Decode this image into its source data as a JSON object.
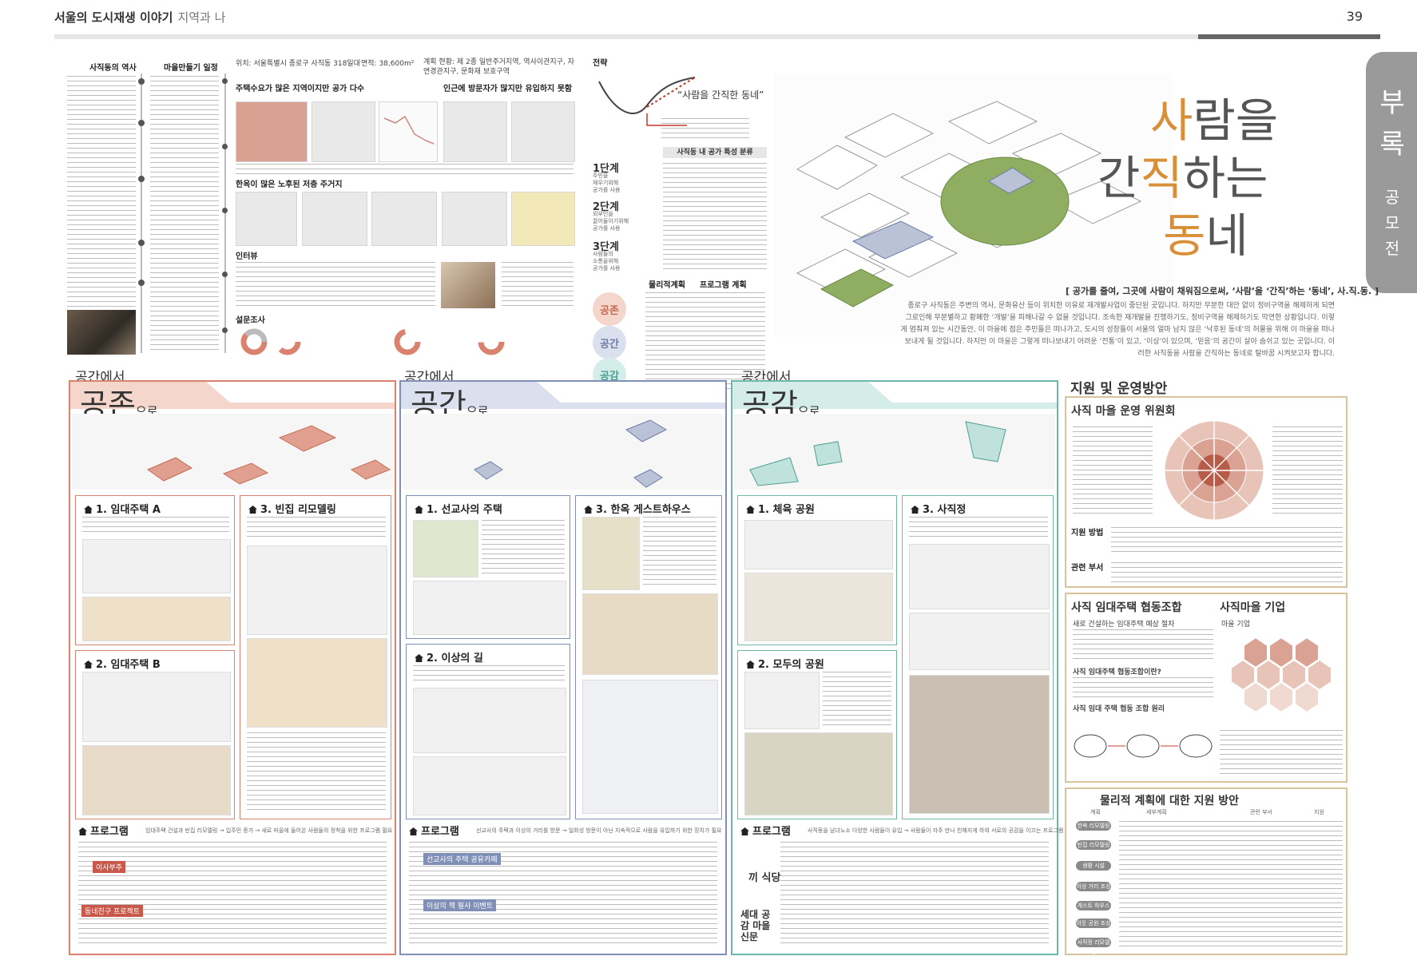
{
  "header": {
    "title": "서울의 도시재생 이야기",
    "subtitle": "지역과 나",
    "page_number": "39"
  },
  "side_tab": {
    "big": [
      "부",
      "록"
    ],
    "small": [
      "공",
      "모",
      "전"
    ]
  },
  "top": {
    "history_title": "사직동의 역사",
    "village_title": "마을만들기 일정",
    "location": "위치: 서울특별시 종로구 사직동 318일대",
    "area": "면적: 38,600m²",
    "plan_status": "계획 현황: 제 2종 일반주거지역, 역사이관지구, 자연경관지구, 문화재 보호구역",
    "section1": "주택수요가 많은 지역이지만 공가 다수",
    "section2": "인근에 방문자가 많지만 유입하지 못함",
    "section3": "한옥이 많은 노후된 저층 주거지",
    "section4": "인터뷰",
    "section5": "설문조사",
    "strategy_title": "전략",
    "strategy_phrase": "“사람을 간직한 동네”",
    "space_types": "사직동 내 공가 특성 분류",
    "stages": [
      {
        "name": "1단계",
        "desc": [
          "주민을",
          "채우기위해",
          "공가를 사용"
        ]
      },
      {
        "name": "2단계",
        "desc": [
          "외부인을",
          "끌어들이기위해",
          "공가를 사용"
        ]
      },
      {
        "name": "3단계",
        "desc": [
          "사람들의",
          "소통을위해",
          "공가를 사용"
        ]
      }
    ],
    "plan_labels": [
      "물리적계획",
      "프로그램 계획"
    ],
    "circles": [
      "공존",
      "공간",
      "공감"
    ]
  },
  "hero": {
    "title_lines": [
      {
        "pre": "",
        "acc": "사",
        "post": "람을"
      },
      {
        "pre": "간",
        "acc": "직",
        "post": "하는"
      },
      {
        "pre": "",
        "acc": "동",
        "post": "네"
      }
    ],
    "quote": "[ 공가를 줄여, 그곳에 사람이 채워짐으로써, ‘사람’을 ‘간직’하는 ‘동네’, 사.직.동. ]",
    "paragraph": "종로구 사직동은 주변의 역사, 문화유산 등이 위치한 이유로 재개발사업이 중단된 곳입니다. 하지만 무분한 대안 없이 정비구역을 해제하게 되면 그로인해 무분별하고 황폐한 ‘개발’을 피해나갈 수 없을 것입니다. 조속한 재개발을 진행하기도, 정비구역을 해제하기도 막연한 상황입니다. 이렇게 멈춰져 있는 시간동안, 이 마을에 점은 주민들은 떠나가고, 도시의 성장들이 서울의 얼마 남지 않은 ‘낙후된 동네’의 허물을 위해 이 마을을 떠나보내게 될 것입니다. 하지만 이 마을은 그렇게 떠나보내기 어려운 ‘전통’이 있고, ‘이상’이 있으며, ‘믿음’의 공간이 살아 숨쉬고 있는 곳입니다. 이러한 사직동을 사람을 간직하는 동네로 탈바꿈 시켜보고자 합니다."
  },
  "panels": [
    {
      "tab": "공간에서",
      "big": "공존",
      "suffix": "으로",
      "sub1": "1. 임대주택 A",
      "sub2": "2. 임대주택 B",
      "sub3": "3. 빈집 리모델링",
      "program": "프로그램",
      "program_note": "임대주택 건설과 빈집 리모델링 → 입주민 증가 → 새로 마을에 들어온 사람들의 정착을 위한 프로그램 필요",
      "labels": [
        "이사부주",
        "동네친구 프로젝트"
      ]
    },
    {
      "tab": "공간에서",
      "big": "공간",
      "suffix": "으로",
      "sub1": "1. 선교사의 주택",
      "sub2": "2. 이상의 길",
      "sub3": "3. 한옥 게스트하우스",
      "program": "프로그램",
      "program_note": "선교사의 주택과 이상의 거리를 방문 → 일회성 방문이 아닌 지속적으로 사람을 유입하기 위한 장치가 필요",
      "labels": [
        "선교사의 주택 공유카페",
        "이상의 책 필사 이벤트"
      ]
    },
    {
      "tab": "공간에서",
      "big": "공감",
      "suffix": "으로",
      "sub1": "1. 체육 공원",
      "sub2": "2. 모두의 공원",
      "sub3": "3. 사직정",
      "program": "프로그램",
      "program_note": "사직동을 남녀노소 다양한 사람들이 유입 → 사람들이 자주 만나 친해지게 하여 서로의 공감을 이끄는 프로그램 계획",
      "labels": [
        "끼 식당",
        "세대 공감 마을 신문"
      ]
    }
  ],
  "support": {
    "title": "지원 및 운영방안",
    "committee": "사직 마을 운영 위원회",
    "method": "지원 방법",
    "dept": "관련 부서",
    "coop": "사직 임대주택 협동조합",
    "biz": "사직마을 기업",
    "coop_note": "새로 건설하는 임대주택 예상 절차",
    "coop_q": "사직 임대주택 협동조합이란?",
    "coop_principle": "사직 임대 주택 협동 조합 원리",
    "biz_note": "마을 기업",
    "phys": "물리적 계획에 대한 지원 방안",
    "phys_cols": [
      "계획",
      "세부계획",
      "관련 부서",
      "지원"
    ],
    "phys_rows": [
      "한옥 리모델링",
      "빈집 리모델링",
      "생활 시설",
      "이상 거리 조성",
      "게스트 하우스",
      "이웃 공원 조성",
      "사직정 리모델링"
    ]
  },
  "colors": {
    "coexist": "#d9826f",
    "space": "#7f8fb6",
    "empathy": "#6fb7ad",
    "support": "#d6c59a",
    "accent": "#d98f38"
  }
}
